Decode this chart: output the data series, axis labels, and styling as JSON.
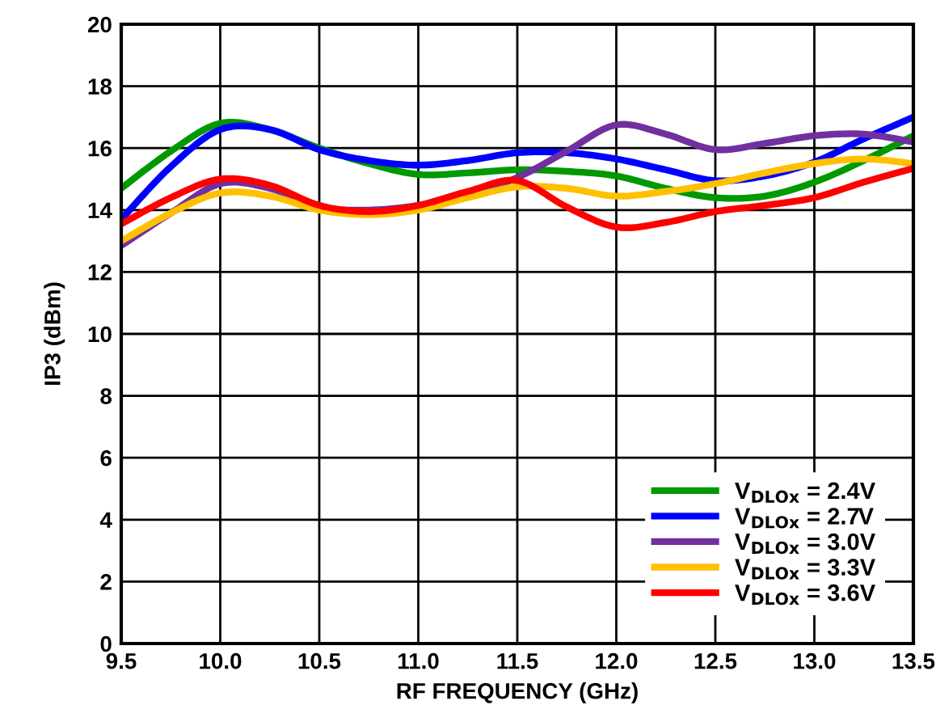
{
  "chart_data": {
    "type": "line",
    "xlabel": "RF FREQUENCY (GHz)",
    "ylabel": "IP3 (dBm)",
    "x": [
      9.5,
      9.75,
      10.0,
      10.25,
      10.5,
      10.75,
      11.0,
      11.25,
      11.5,
      11.75,
      12.0,
      12.25,
      12.5,
      12.75,
      13.0,
      13.25,
      13.5
    ],
    "series": [
      {
        "name": "V$_{DLOx}$ = 2.4V",
        "color": "#009900",
        "values": [
          14.7,
          15.9,
          16.8,
          16.6,
          16.0,
          15.5,
          15.15,
          15.2,
          15.3,
          15.25,
          15.1,
          14.7,
          14.4,
          14.45,
          14.9,
          15.6,
          16.4
        ]
      },
      {
        "name": "V$_{DLOx}$ = 2.7V",
        "color": "#0000ff",
        "values": [
          13.7,
          15.4,
          16.6,
          16.6,
          15.95,
          15.6,
          15.45,
          15.6,
          15.85,
          15.85,
          15.65,
          15.3,
          14.95,
          15.1,
          15.55,
          16.3,
          17.0
        ]
      },
      {
        "name": "V$_{DLOx}$ = 3.0V",
        "color": "#7030a0",
        "values": [
          12.85,
          13.9,
          14.85,
          14.7,
          14.1,
          14.0,
          14.15,
          14.5,
          15.05,
          15.9,
          16.75,
          16.45,
          15.95,
          16.15,
          16.4,
          16.45,
          16.2
        ]
      },
      {
        "name": "V$_{DLOx}$ = 3.3V",
        "color": "#ffc000",
        "values": [
          13.0,
          13.9,
          14.55,
          14.45,
          14.0,
          13.85,
          14.0,
          14.4,
          14.75,
          14.7,
          14.45,
          14.6,
          14.85,
          15.2,
          15.5,
          15.65,
          15.5
        ]
      },
      {
        "name": "V$_{DLOx}$ = 3.6V",
        "color": "#ff0000",
        "values": [
          13.55,
          14.4,
          15.0,
          14.8,
          14.15,
          13.95,
          14.15,
          14.6,
          14.95,
          14.1,
          13.45,
          13.6,
          13.95,
          14.15,
          14.4,
          14.9,
          15.35
        ]
      }
    ],
    "xlim": [
      9.5,
      13.5
    ],
    "xticks": [
      {
        "value": 9.5,
        "label": "9.5"
      },
      {
        "value": 10.0,
        "label": "10.0"
      },
      {
        "value": 10.5,
        "label": "10.5"
      },
      {
        "value": 11.0,
        "label": "11.0"
      },
      {
        "value": 11.5,
        "label": "11.5"
      },
      {
        "value": 12.0,
        "label": "12.0"
      },
      {
        "value": 12.5,
        "label": "12.5"
      },
      {
        "value": 13.0,
        "label": "13.0"
      },
      {
        "value": 13.5,
        "label": "13.5"
      }
    ],
    "ylim": [
      0,
      20
    ],
    "yticks": [
      0,
      2,
      4,
      6,
      8,
      10,
      12,
      14,
      16,
      18,
      20
    ],
    "grid": true,
    "legend": "bottom right",
    "marker": "none",
    "line_style": "solid"
  }
}
